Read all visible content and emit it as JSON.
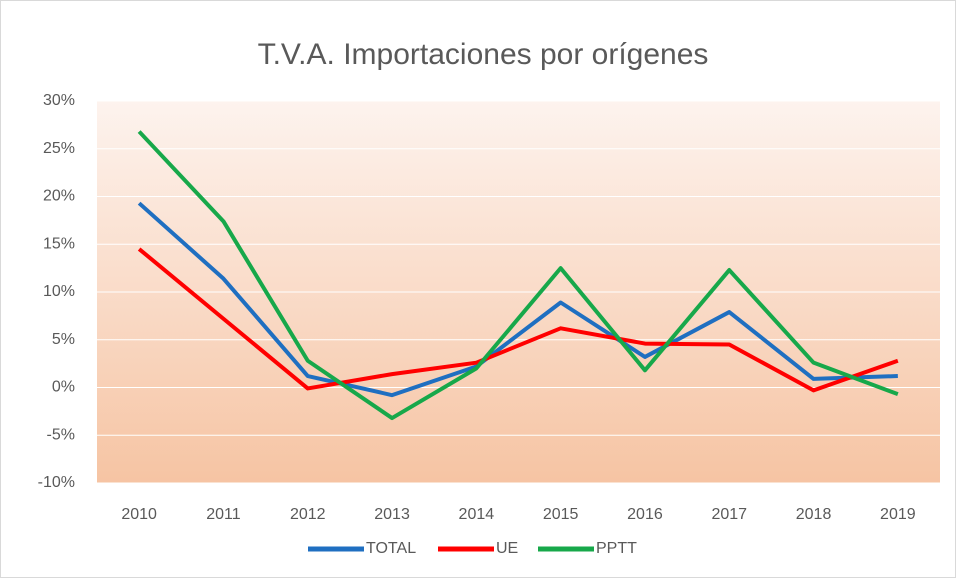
{
  "chart_data": {
    "type": "line",
    "title": "T.V.A. Importaciones por orígenes",
    "categories": [
      "2010",
      "2011",
      "2012",
      "2013",
      "2014",
      "2015",
      "2016",
      "2017",
      "2018",
      "2019"
    ],
    "series": [
      {
        "name": "TOTAL",
        "color": "#1f6fc1",
        "values": [
          19.3,
          11.4,
          1.2,
          -0.8,
          2.2,
          8.9,
          3.2,
          7.9,
          0.9,
          1.2
        ]
      },
      {
        "name": "UE",
        "color": "#ff0000",
        "values": [
          14.5,
          7.2,
          -0.1,
          1.4,
          2.6,
          6.2,
          4.6,
          4.5,
          -0.3,
          2.8
        ]
      },
      {
        "name": "PPTT",
        "color": "#17a84a",
        "values": [
          26.8,
          17.4,
          2.8,
          -3.2,
          2.0,
          12.5,
          1.8,
          12.3,
          2.6,
          -0.7
        ]
      }
    ],
    "ylim": [
      -10,
      30
    ],
    "yticks": [
      {
        "value": -10,
        "label": "-10%"
      },
      {
        "value": -5,
        "label": "-5%"
      },
      {
        "value": 0,
        "label": "0%"
      },
      {
        "value": 5,
        "label": "5%"
      },
      {
        "value": 10,
        "label": "10%"
      },
      {
        "value": 15,
        "label": "15%"
      },
      {
        "value": 20,
        "label": "20%"
      },
      {
        "value": 25,
        "label": "25%"
      },
      {
        "value": 30,
        "label": "30%"
      }
    ],
    "grid": true,
    "legend": "bottom"
  }
}
